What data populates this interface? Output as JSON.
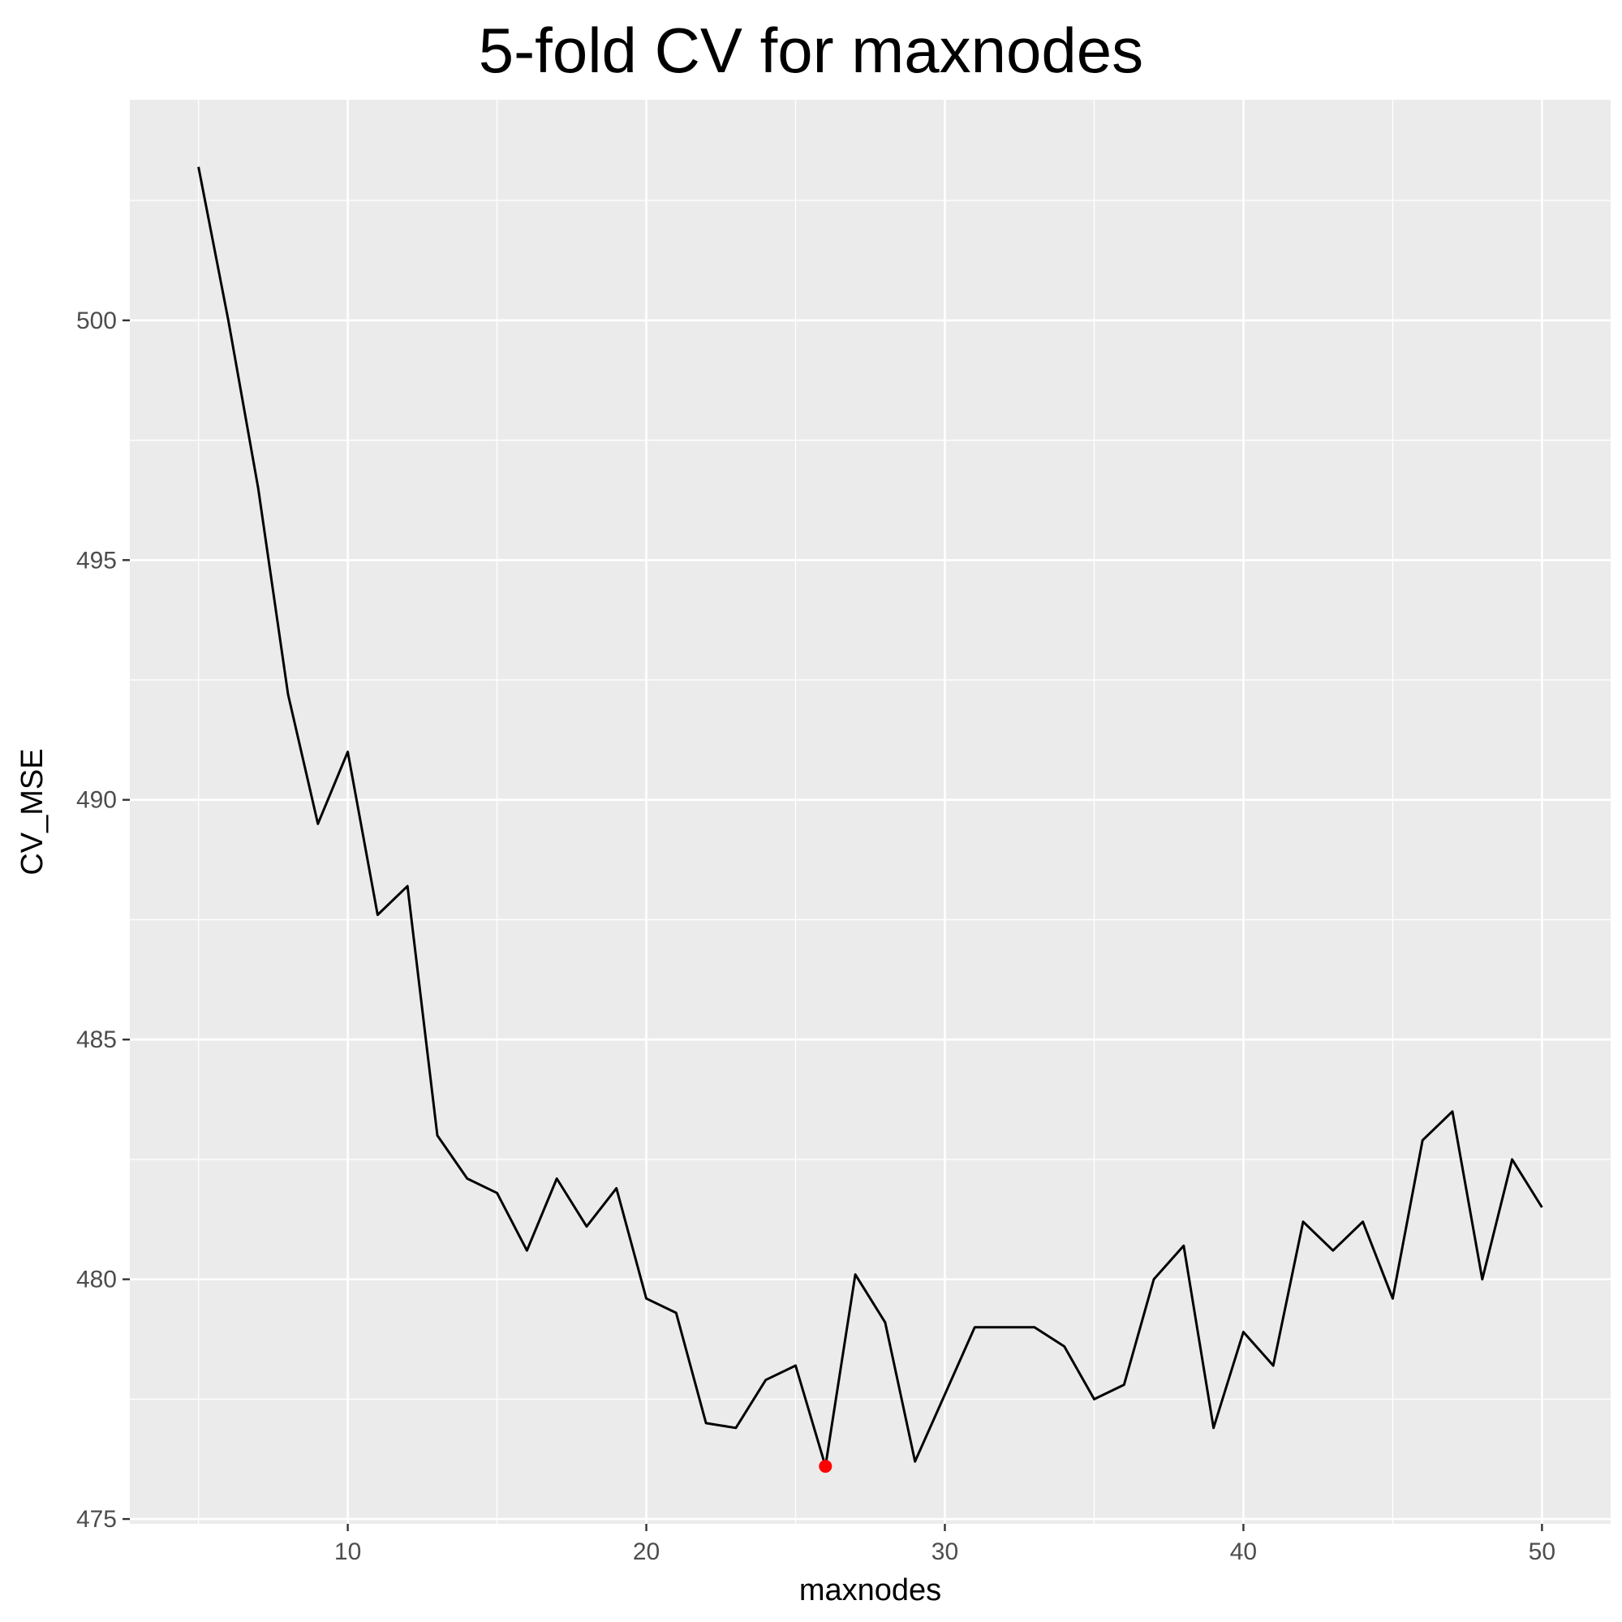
{
  "chart_data": {
    "type": "line",
    "title": "5-fold CV for maxnodes",
    "xlabel": "maxnodes",
    "ylabel": "CV_MSE",
    "xlim": [
      2.7,
      52.3
    ],
    "ylim": [
      474.9,
      504.6
    ],
    "x_ticks": [
      10,
      20,
      30,
      40,
      50
    ],
    "y_ticks": [
      475,
      480,
      485,
      490,
      495,
      500
    ],
    "x_tick_labels": [
      "10",
      "20",
      "30",
      "40",
      "50"
    ],
    "y_tick_labels": [
      "475",
      "480",
      "485",
      "490",
      "495",
      "500"
    ],
    "grid": true,
    "panel_background": "#ebebeb",
    "grid_color": "#ffffff",
    "line_color": "#000000",
    "highlight_color": "#ff0000",
    "series": [
      {
        "x": [
          5,
          6,
          7,
          8,
          9,
          10,
          11,
          12,
          13,
          14,
          15,
          16,
          17,
          18,
          19,
          20,
          21,
          22,
          23,
          24,
          25,
          26,
          27,
          28,
          29,
          30,
          31,
          32,
          33,
          34,
          35,
          36,
          37,
          38,
          39,
          40,
          41,
          42,
          43,
          44,
          45,
          46,
          47,
          48,
          49,
          50
        ],
        "values": [
          503.2,
          500.0,
          496.5,
          492.2,
          489.5,
          491.0,
          487.6,
          488.2,
          483.0,
          482.1,
          481.8,
          480.6,
          482.1,
          481.1,
          481.9,
          479.6,
          479.3,
          477.0,
          476.9,
          477.9,
          478.2,
          476.1,
          480.1,
          479.1,
          476.2,
          477.6,
          479.0,
          479.0,
          479.0,
          478.6,
          477.5,
          477.8,
          480.0,
          480.7,
          476.9,
          478.9,
          478.2,
          481.2,
          480.6,
          481.2,
          479.6,
          482.9,
          483.5,
          480.0,
          482.5,
          481.5
        ]
      }
    ],
    "highlight_point": {
      "x": 26,
      "y": 476.1
    }
  }
}
